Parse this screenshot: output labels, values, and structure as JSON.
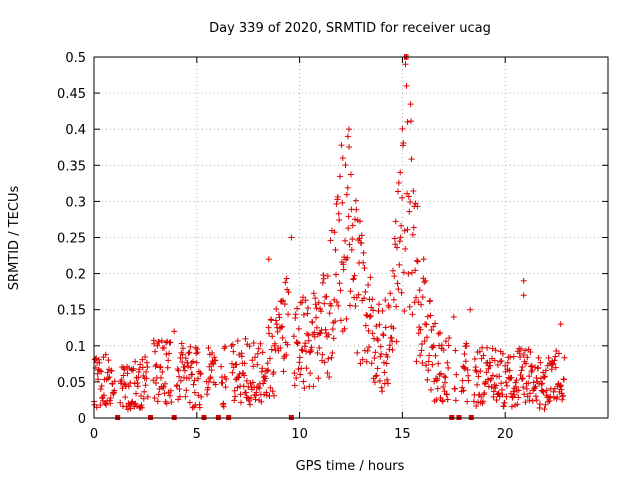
{
  "chart_data": {
    "type": "scatter",
    "title": "Day 339 of 2020, SRMTID for receiver ucag",
    "xlabel": "GPS time / hours",
    "ylabel": "SRMTID / TECUs",
    "xlim": [
      0,
      25
    ],
    "ylim": [
      0,
      0.5
    ],
    "x_ticks": [
      0,
      5,
      10,
      15,
      20
    ],
    "x_tick_labels": [
      "0",
      "5",
      "10",
      "15",
      "20"
    ],
    "y_ticks": [
      0,
      0.05,
      0.1,
      0.15,
      0.2,
      0.25,
      0.3,
      0.35,
      0.4,
      0.45,
      0.5
    ],
    "y_tick_labels": [
      "0",
      "0.05",
      "0.1",
      "0.15",
      "0.2",
      "0.25",
      "0.3",
      "0.35",
      "0.4",
      "0.45",
      "0.5"
    ],
    "grid": true,
    "marker": "+",
    "color": "#e00000",
    "series": [
      {
        "name": "SRMTID",
        "profile": [
          {
            "x": 0.0,
            "y": 0.045
          },
          {
            "x": 0.5,
            "y": 0.05
          },
          {
            "x": 1.0,
            "y": 0.045
          },
          {
            "x": 1.5,
            "y": 0.04
          },
          {
            "x": 2.0,
            "y": 0.045
          },
          {
            "x": 2.5,
            "y": 0.05
          },
          {
            "x": 3.0,
            "y": 0.065
          },
          {
            "x": 3.5,
            "y": 0.06
          },
          {
            "x": 4.0,
            "y": 0.065
          },
          {
            "x": 4.5,
            "y": 0.06
          },
          {
            "x": 5.0,
            "y": 0.055
          },
          {
            "x": 5.5,
            "y": 0.055
          },
          {
            "x": 6.0,
            "y": 0.055
          },
          {
            "x": 6.5,
            "y": 0.06
          },
          {
            "x": 7.0,
            "y": 0.065
          },
          {
            "x": 7.5,
            "y": 0.065
          },
          {
            "x": 8.0,
            "y": 0.065
          },
          {
            "x": 8.5,
            "y": 0.075
          },
          {
            "x": 9.0,
            "y": 0.11
          },
          {
            "x": 9.5,
            "y": 0.12
          },
          {
            "x": 10.0,
            "y": 0.11
          },
          {
            "x": 10.5,
            "y": 0.1
          },
          {
            "x": 11.0,
            "y": 0.11
          },
          {
            "x": 11.5,
            "y": 0.15
          },
          {
            "x": 12.0,
            "y": 0.25
          },
          {
            "x": 12.3,
            "y": 0.3
          },
          {
            "x": 12.6,
            "y": 0.22
          },
          {
            "x": 13.0,
            "y": 0.16
          },
          {
            "x": 13.5,
            "y": 0.12
          },
          {
            "x": 14.0,
            "y": 0.1
          },
          {
            "x": 14.5,
            "y": 0.14
          },
          {
            "x": 15.0,
            "y": 0.25
          },
          {
            "x": 15.2,
            "y": 0.38
          },
          {
            "x": 15.5,
            "y": 0.22
          },
          {
            "x": 16.0,
            "y": 0.16
          },
          {
            "x": 16.5,
            "y": 0.08
          },
          {
            "x": 17.0,
            "y": 0.065
          },
          {
            "x": 17.5,
            "y": 0.065
          },
          {
            "x": 18.0,
            "y": 0.06
          },
          {
            "x": 18.5,
            "y": 0.06
          },
          {
            "x": 19.0,
            "y": 0.055
          },
          {
            "x": 19.5,
            "y": 0.055
          },
          {
            "x": 20.0,
            "y": 0.05
          },
          {
            "x": 20.5,
            "y": 0.055
          },
          {
            "x": 21.0,
            "y": 0.06
          },
          {
            "x": 21.5,
            "y": 0.05
          },
          {
            "x": 22.0,
            "y": 0.05
          },
          {
            "x": 22.5,
            "y": 0.055
          },
          {
            "x": 22.9,
            "y": 0.06
          }
        ],
        "outliers": [
          {
            "x": 15.1,
            "y": 0.5
          },
          {
            "x": 15.15,
            "y": 0.49
          },
          {
            "x": 15.2,
            "y": 0.46
          },
          {
            "x": 15.25,
            "y": 0.41
          },
          {
            "x": 12.4,
            "y": 0.4
          },
          {
            "x": 12.35,
            "y": 0.39
          },
          {
            "x": 12.1,
            "y": 0.36
          },
          {
            "x": 9.6,
            "y": 0.25
          },
          {
            "x": 20.9,
            "y": 0.19
          },
          {
            "x": 20.9,
            "y": 0.17
          },
          {
            "x": 8.5,
            "y": 0.22
          },
          {
            "x": 3.9,
            "y": 0.12
          },
          {
            "x": 22.7,
            "y": 0.13
          },
          {
            "x": 18.3,
            "y": 0.15
          },
          {
            "x": 17.5,
            "y": 0.14
          }
        ]
      }
    ],
    "data_gaps_x": [
      1.15,
      2.75,
      3.9,
      5.35,
      6.05,
      6.55,
      9.6,
      17.4,
      17.75,
      18.35
    ]
  }
}
